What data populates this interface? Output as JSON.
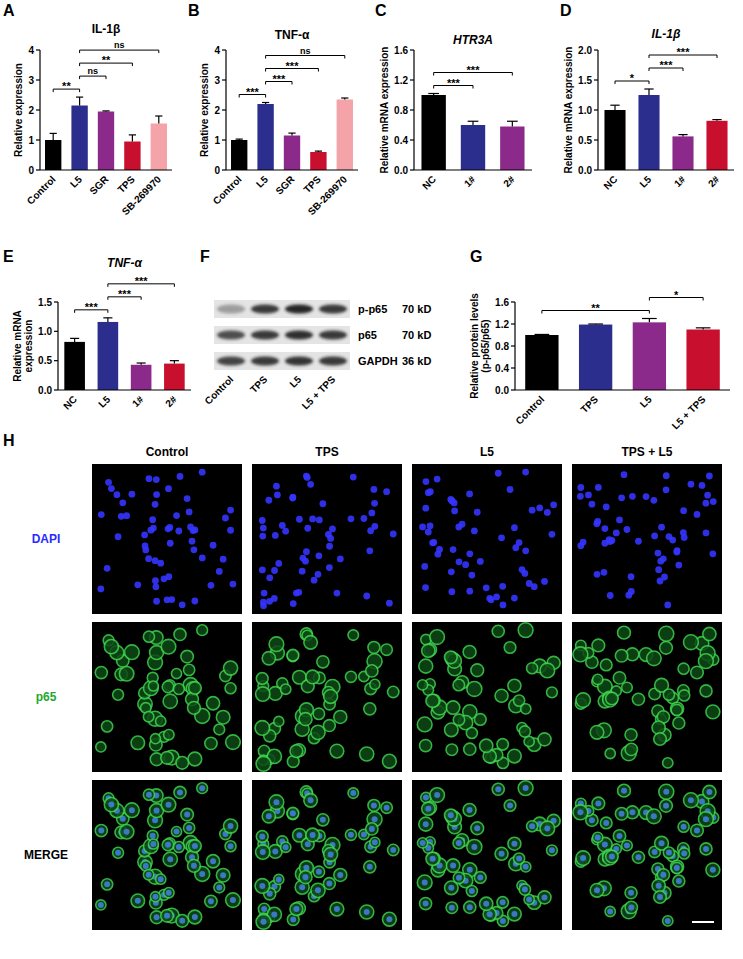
{
  "chart_data": [
    {
      "panel": "A",
      "type": "bar",
      "title": "IL-1β",
      "ylabel": "Relative expression",
      "categories": [
        "Control",
        "L5",
        "SGR",
        "TPS",
        "SB-269970"
      ],
      "values": [
        1.0,
        2.15,
        1.95,
        0.95,
        1.55
      ],
      "errors": [
        0.22,
        0.28,
        0.02,
        0.22,
        0.25
      ],
      "colors": [
        "#000000",
        "#2b2e8c",
        "#8b2a8a",
        "#c8102e",
        "#f4a3a8"
      ],
      "ylim": [
        0,
        4
      ],
      "yticks": [
        0,
        1,
        2,
        3,
        4
      ],
      "grid": false,
      "annotations": [
        {
          "from": "Control",
          "to": "L5",
          "label": "**"
        },
        {
          "from": "L5",
          "to": "SGR",
          "label": "ns"
        },
        {
          "from": "L5",
          "to": "TPS",
          "label": "**"
        },
        {
          "from": "L5",
          "to": "SB-269970",
          "label": "ns"
        }
      ]
    },
    {
      "panel": "B",
      "type": "bar",
      "title": "TNF-α",
      "ylabel": "Relative expression",
      "categories": [
        "Control",
        "L5",
        "SGR",
        "TPS",
        "SB-269970"
      ],
      "values": [
        1.0,
        2.2,
        1.15,
        0.6,
        2.35
      ],
      "errors": [
        0.03,
        0.05,
        0.08,
        0.03,
        0.05
      ],
      "colors": [
        "#000000",
        "#2b2e8c",
        "#8b2a8a",
        "#c8102e",
        "#f4a3a8"
      ],
      "ylim": [
        0,
        4
      ],
      "yticks": [
        0,
        1,
        2,
        3,
        4
      ],
      "grid": false,
      "annotations": [
        {
          "from": "Control",
          "to": "L5",
          "label": "***"
        },
        {
          "from": "L5",
          "to": "SGR",
          "label": "***"
        },
        {
          "from": "L5",
          "to": "TPS",
          "label": "***"
        },
        {
          "from": "L5",
          "to": "SB-269970",
          "label": "ns"
        }
      ]
    },
    {
      "panel": "C",
      "type": "bar",
      "title": "HTR3A",
      "ylabel": "Relative mRNA expression",
      "categories": [
        "NC",
        "1#",
        "2#"
      ],
      "values": [
        1.0,
        0.6,
        0.58
      ],
      "errors": [
        0.02,
        0.05,
        0.07
      ],
      "colors": [
        "#000000",
        "#2b2e8c",
        "#8b2a8a"
      ],
      "ylim": [
        0,
        1.6
      ],
      "yticks": [
        {
          "value": 0,
          "label": "0.0"
        },
        0.4,
        0.8,
        1.2,
        1.6
      ],
      "grid": false,
      "annotations": [
        {
          "from": "NC",
          "to": "1#",
          "label": "***"
        },
        {
          "from": "NC",
          "to": "2#",
          "label": "***"
        }
      ]
    },
    {
      "panel": "D",
      "type": "bar",
      "title": "IL-1β",
      "ylabel": "Relative mRNA expression",
      "categories": [
        "NC",
        "L5",
        "1#",
        "2#"
      ],
      "values": [
        1.0,
        1.25,
        0.56,
        0.82
      ],
      "errors": [
        0.08,
        0.1,
        0.03,
        0.02
      ],
      "colors": [
        "#000000",
        "#2b2e8c",
        "#8b2a8a",
        "#c8102e"
      ],
      "ylim": [
        0,
        2
      ],
      "yticks": [
        {
          "value": 0,
          "label": "0.0"
        },
        0.5,
        {
          "value": 1,
          "label": "1.0"
        },
        1.5,
        {
          "value": 2,
          "label": "2.0"
        }
      ],
      "grid": false,
      "annotations": [
        {
          "from": "NC",
          "to": "L5",
          "label": "*"
        },
        {
          "from": "L5",
          "to": "1#",
          "label": "***"
        },
        {
          "from": "L5",
          "to": "2#",
          "label": "***"
        }
      ]
    },
    {
      "panel": "E",
      "type": "bar",
      "title": "TNF-α",
      "ylabel": "Relative mRNA expression",
      "categories": [
        "NC",
        "L5",
        "1#",
        "2#"
      ],
      "values": [
        0.82,
        1.16,
        0.43,
        0.45
      ],
      "errors": [
        0.06,
        0.07,
        0.03,
        0.05
      ],
      "colors": [
        "#000000",
        "#2b2e8c",
        "#8b2a8a",
        "#c8102e"
      ],
      "ylim": [
        0,
        1.5
      ],
      "yticks": [
        {
          "value": 0,
          "label": "0.0"
        },
        0.5,
        {
          "value": 1,
          "label": "1.0"
        },
        1.5
      ],
      "grid": false,
      "annotations": [
        {
          "from": "NC",
          "to": "L5",
          "label": "***"
        },
        {
          "from": "L5",
          "to": "1#",
          "label": "***"
        },
        {
          "from": "L5",
          "to": "2#",
          "label": "***"
        }
      ]
    },
    {
      "panel": "G",
      "type": "bar",
      "ylabel": "Relative protein levels (p-p65/p65)",
      "categories": [
        "Control",
        "TPS",
        "L5",
        "L5 + TPS"
      ],
      "values": [
        1.0,
        1.19,
        1.23,
        1.1
      ],
      "errors": [
        0.01,
        0.01,
        0.07,
        0.03
      ],
      "colors": [
        "#000000",
        "#2b2e8c",
        "#8b2a8a",
        "#c8102e"
      ],
      "ylim": [
        0,
        1.6
      ],
      "yticks": [
        {
          "value": 0,
          "label": "0.0"
        },
        0.4,
        0.8,
        1.2,
        1.6
      ],
      "grid": false,
      "annotations": [
        {
          "from": "Control",
          "to": "L5",
          "label": "**"
        },
        {
          "from": "L5",
          "to": "L5 + TPS",
          "label": "*"
        }
      ]
    }
  ],
  "blot": {
    "panel": "F",
    "rows": [
      {
        "label": "p-p65",
        "size": "70 kD"
      },
      {
        "label": "p65",
        "size": "70 kD"
      },
      {
        "label": "GAPDH",
        "size": "36 kD"
      }
    ],
    "lanes": [
      "Control",
      "TPS",
      "L5",
      "L5 + TPS"
    ]
  },
  "micrograph": {
    "panel": "H",
    "columns": [
      "Control",
      "TPS",
      "L5",
      "TPS + L5"
    ],
    "rows": [
      "DAPI",
      "p65",
      "MERGE"
    ]
  }
}
